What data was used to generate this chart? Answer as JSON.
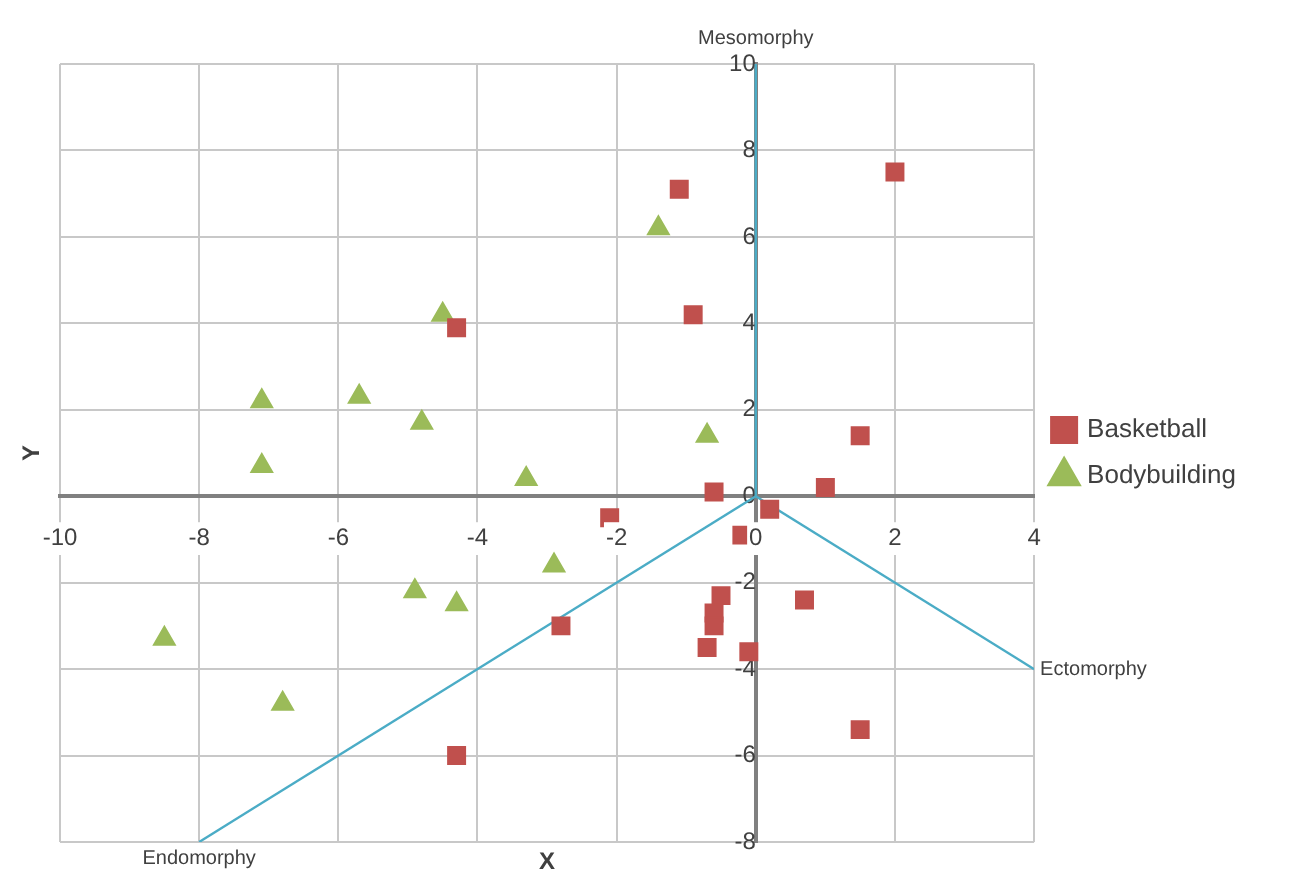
{
  "chart_data": {
    "type": "scatter",
    "xlabel": "X",
    "ylabel": "Y",
    "xlim": [
      -10,
      4
    ],
    "xticks": [
      -10,
      -8,
      -6,
      -4,
      -2,
      0,
      2,
      4
    ],
    "ylim": [
      -8,
      10
    ],
    "yticks": [
      -8,
      -6,
      -4,
      -2,
      0,
      2,
      4,
      6,
      8,
      10
    ],
    "grid": true,
    "legend": "right",
    "series": [
      {
        "name": "Basketball",
        "type": "scatter",
        "marker": "square",
        "color": "#c0504d",
        "x": [
          2.0,
          -1.1,
          -0.9,
          -4.3,
          1.5,
          1.0,
          -0.6,
          -2.1,
          0.2,
          -0.2,
          -0.5,
          -0.6,
          -0.6,
          -0.7,
          -0.1,
          0.7,
          1.5,
          -2.8,
          -4.3
        ],
        "values": [
          7.5,
          7.1,
          4.2,
          3.9,
          1.4,
          0.2,
          0.1,
          -0.5,
          -0.3,
          -0.9,
          -2.3,
          -2.7,
          -3.0,
          -3.5,
          -3.6,
          -2.4,
          -5.4,
          -3.0,
          -6.0
        ]
      },
      {
        "name": "Bodybuilding",
        "type": "scatter",
        "marker": "triangle",
        "color": "#9bbb59",
        "x": [
          -1.4,
          -4.5,
          -0.7,
          -7.1,
          -5.7,
          -4.8,
          -7.1,
          -3.3,
          -2.9,
          -4.9,
          -4.3,
          -8.5,
          -6.8
        ],
        "values": [
          6.2,
          4.2,
          1.4,
          2.2,
          2.3,
          1.7,
          0.7,
          0.4,
          -1.6,
          -2.2,
          -2.5,
          -3.3,
          -4.8
        ]
      },
      {
        "type": "line",
        "marker": "none",
        "color": "#4bacc6",
        "x": [
          0,
          0
        ],
        "values": [
          0,
          10
        ]
      },
      {
        "type": "line",
        "marker": "none",
        "color": "#4bacc6",
        "x": [
          0,
          4
        ],
        "values": [
          0,
          -4
        ]
      },
      {
        "type": "line",
        "marker": "none",
        "color": "#4bacc6",
        "x": [
          0,
          -8
        ],
        "values": [
          0,
          -8
        ]
      }
    ],
    "annotations": [
      {
        "text": "Mesomorphy",
        "x": 0,
        "y": 10
      },
      {
        "text": "Ectomorphy",
        "x": 4,
        "y": -4
      },
      {
        "text": "Endomorphy",
        "x": -8,
        "y": -8
      }
    ]
  }
}
